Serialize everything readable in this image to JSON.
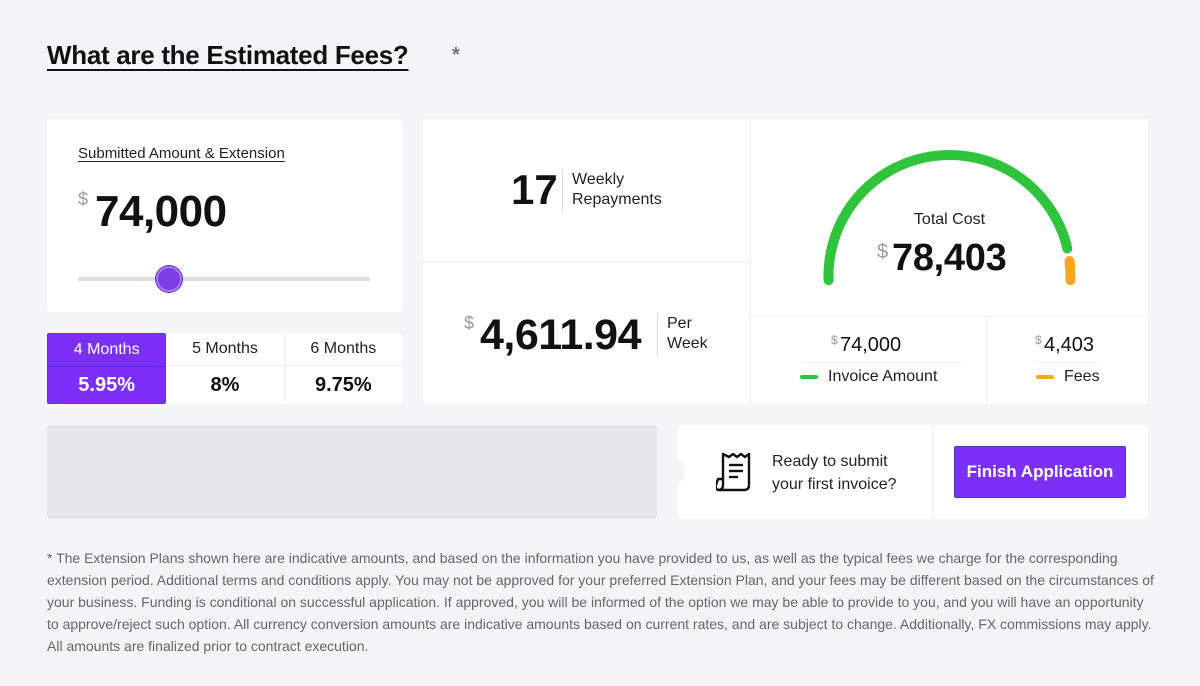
{
  "header": {
    "title": "What are the Estimated Fees?",
    "required_mark": "*"
  },
  "amount": {
    "label": "Submitted Amount & Extension",
    "currency_symbol": "$",
    "value": "74,000",
    "slider_fraction": 0.31
  },
  "plans": [
    {
      "label": "4 Months",
      "rate": "5.95%",
      "active": true
    },
    {
      "label": "5 Months",
      "rate": "8%",
      "active": false
    },
    {
      "label": "6 Months",
      "rate": "9.75%",
      "active": false
    }
  ],
  "repayments": {
    "count": "17",
    "line1": "Weekly",
    "line2": "Repayments"
  },
  "per_week": {
    "currency_symbol": "$",
    "value": "4,611.94",
    "line1": "Per",
    "line2": "Week"
  },
  "total_cost": {
    "label": "Total Cost",
    "currency_symbol": "$",
    "value": "78,403",
    "invoice_fraction": 0.9438
  },
  "breakdown": {
    "invoice": {
      "currency_symbol": "$",
      "value": "74,000",
      "label": "Invoice Amount",
      "color": "#2fc43b"
    },
    "fees": {
      "currency_symbol": "$",
      "value": "4,403",
      "label": "Fees",
      "color": "#f5a623"
    }
  },
  "submit": {
    "line1": "Ready to submit",
    "line2": "your first invoice?",
    "button_label": "Finish Application",
    "icon": "receipt-icon"
  },
  "disclaimer": "* The Extension Plans shown here are indicative amounts, and based on the information you have provided to us, as well as the typical fees we charge for the corresponding extension period. Additional terms and conditions apply. You may not be approved for your preferred Extension Plan, and your fees may be different based on the circumstances of your business. Funding is conditional on successful application. If approved, you will be informed of the option we may be able to provide to you, and you will have an opportunity to approve/reject such option. All currency conversion amounts are indicative amounts based on current rates, and are subject to change. Additionally, FX commissions may apply. All amounts are finalized prior to contract execution."
}
